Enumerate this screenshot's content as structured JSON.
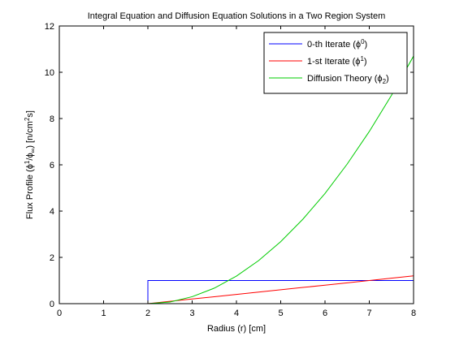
{
  "chart_data": {
    "type": "line",
    "title": "Integral Equation and Diffusion Equation Solutions in a Two Region System",
    "xlabel": "Radius (r) [cm]",
    "ylabel": {
      "prefix": "Flux Profile (",
      "phi": "ϕ",
      "sup1": "1",
      "slash": "/",
      "phi2": "ϕ",
      "sub_inf": "∞",
      "mid": ") [n/cm",
      "sup2": "2",
      "suffix": "s]"
    },
    "xlim": [
      0,
      8
    ],
    "ylim": [
      0,
      12
    ],
    "xticks": [
      0,
      1,
      2,
      3,
      4,
      5,
      6,
      7,
      8
    ],
    "yticks": [
      0,
      2,
      4,
      6,
      8,
      10,
      12
    ],
    "grid": false,
    "legend_position": "top-right",
    "series": [
      {
        "name": "0-th Iterate",
        "legend_parts": [
          "0-th Iterate (",
          "ϕ",
          "0",
          ")"
        ],
        "legend_script": "sup",
        "color": "#0000ff",
        "x": [
          2,
          2,
          8
        ],
        "y": [
          0,
          1,
          1
        ]
      },
      {
        "name": "1-st Iterate",
        "legend_parts": [
          "1-st Iterate (",
          "ϕ",
          "1",
          ")"
        ],
        "legend_script": "sup",
        "color": "#ff0000",
        "x": [
          2,
          2.5,
          3,
          3.5,
          4,
          4.5,
          5,
          5.5,
          6,
          6.5,
          7,
          7.5,
          8
        ],
        "y": [
          0,
          0.1,
          0.2,
          0.3,
          0.4,
          0.5,
          0.6,
          0.7,
          0.8,
          0.9,
          1.0,
          1.1,
          1.2
        ]
      },
      {
        "name": "Diffusion Theory",
        "legend_parts": [
          "Diffusion Theory (",
          "ϕ",
          "2",
          ")"
        ],
        "legend_script": "sub",
        "color": "#00cc00",
        "x": [
          2,
          2.5,
          3,
          3.5,
          4,
          4.5,
          5,
          5.5,
          6,
          6.5,
          7,
          7.5,
          8
        ],
        "y": [
          0,
          0.07,
          0.3,
          0.67,
          1.19,
          1.86,
          2.68,
          3.65,
          4.76,
          6.03,
          7.44,
          9.0,
          10.7
        ]
      }
    ]
  }
}
